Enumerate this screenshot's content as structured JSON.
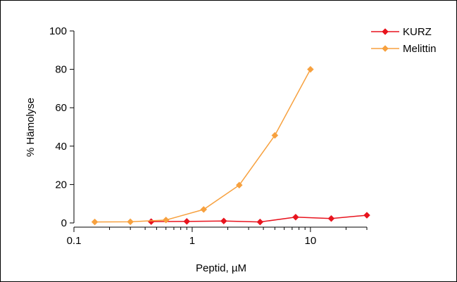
{
  "chart_data": {
    "type": "line",
    "title": "",
    "xlabel": "Peptid, µM",
    "ylabel": "% Hämolyse",
    "x_scale": "log",
    "xlim": [
      0.1,
      30
    ],
    "ylim": [
      0,
      100
    ],
    "x_ticks": [
      0.1,
      1,
      10
    ],
    "x_tick_labels": [
      "0.1",
      "1",
      "10"
    ],
    "y_ticks": [
      0,
      20,
      40,
      60,
      80,
      100
    ],
    "y_tick_labels": [
      "0",
      "20",
      "40",
      "60",
      "80",
      "100"
    ],
    "grid": false,
    "legend_position": "top-right",
    "series": [
      {
        "name": "KURZ",
        "color": "#e8141e",
        "marker": "diamond",
        "x": [
          0.45,
          0.9,
          1.85,
          3.75,
          7.5,
          15,
          30
        ],
        "y": [
          0.7,
          0.8,
          1.0,
          0.5,
          3.0,
          2.3,
          4.0
        ]
      },
      {
        "name": "Melittin",
        "color": "#f7a13f",
        "marker": "diamond",
        "x": [
          0.15,
          0.3,
          0.6,
          1.25,
          2.5,
          5,
          10
        ],
        "y": [
          0.5,
          0.6,
          1.5,
          7.0,
          19.7,
          45.6,
          80.0
        ]
      }
    ]
  }
}
